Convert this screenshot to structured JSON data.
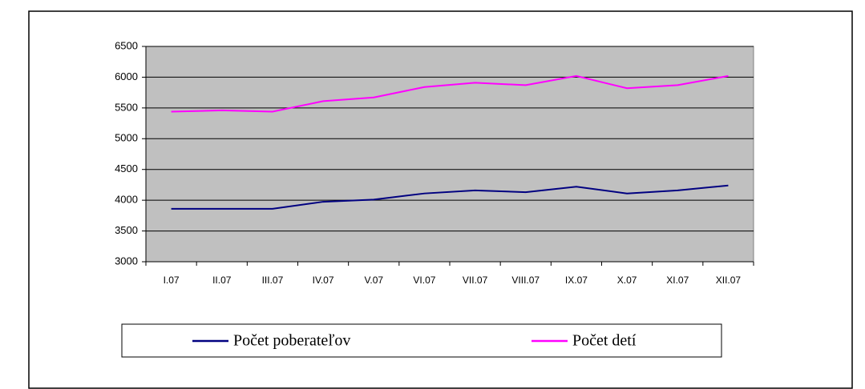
{
  "chart_data": {
    "type": "line",
    "categories": [
      "I.07",
      "II.07",
      "III.07",
      "IV.07",
      "V.07",
      "VI.07",
      "VII.07",
      "VIII.07",
      "IX.07",
      "X.07",
      "XI.07",
      "XII.07"
    ],
    "series": [
      {
        "name": "Počet poberateľov",
        "color": "#000080",
        "values": [
          3860,
          3860,
          3860,
          3975,
          4010,
          4110,
          4160,
          4130,
          4220,
          4110,
          4160,
          4240
        ]
      },
      {
        "name": "Počet detí",
        "color": "#ff00ff",
        "values": [
          5440,
          5460,
          5440,
          5610,
          5670,
          5840,
          5910,
          5870,
          6020,
          5820,
          5870,
          6020
        ]
      }
    ],
    "ylim": [
      3000,
      6500
    ],
    "yticks": [
      3000,
      3500,
      4000,
      4500,
      5000,
      5500,
      6000,
      6500
    ],
    "grid": true,
    "legend": "bottom",
    "plot_background": "#c0c0c0"
  }
}
